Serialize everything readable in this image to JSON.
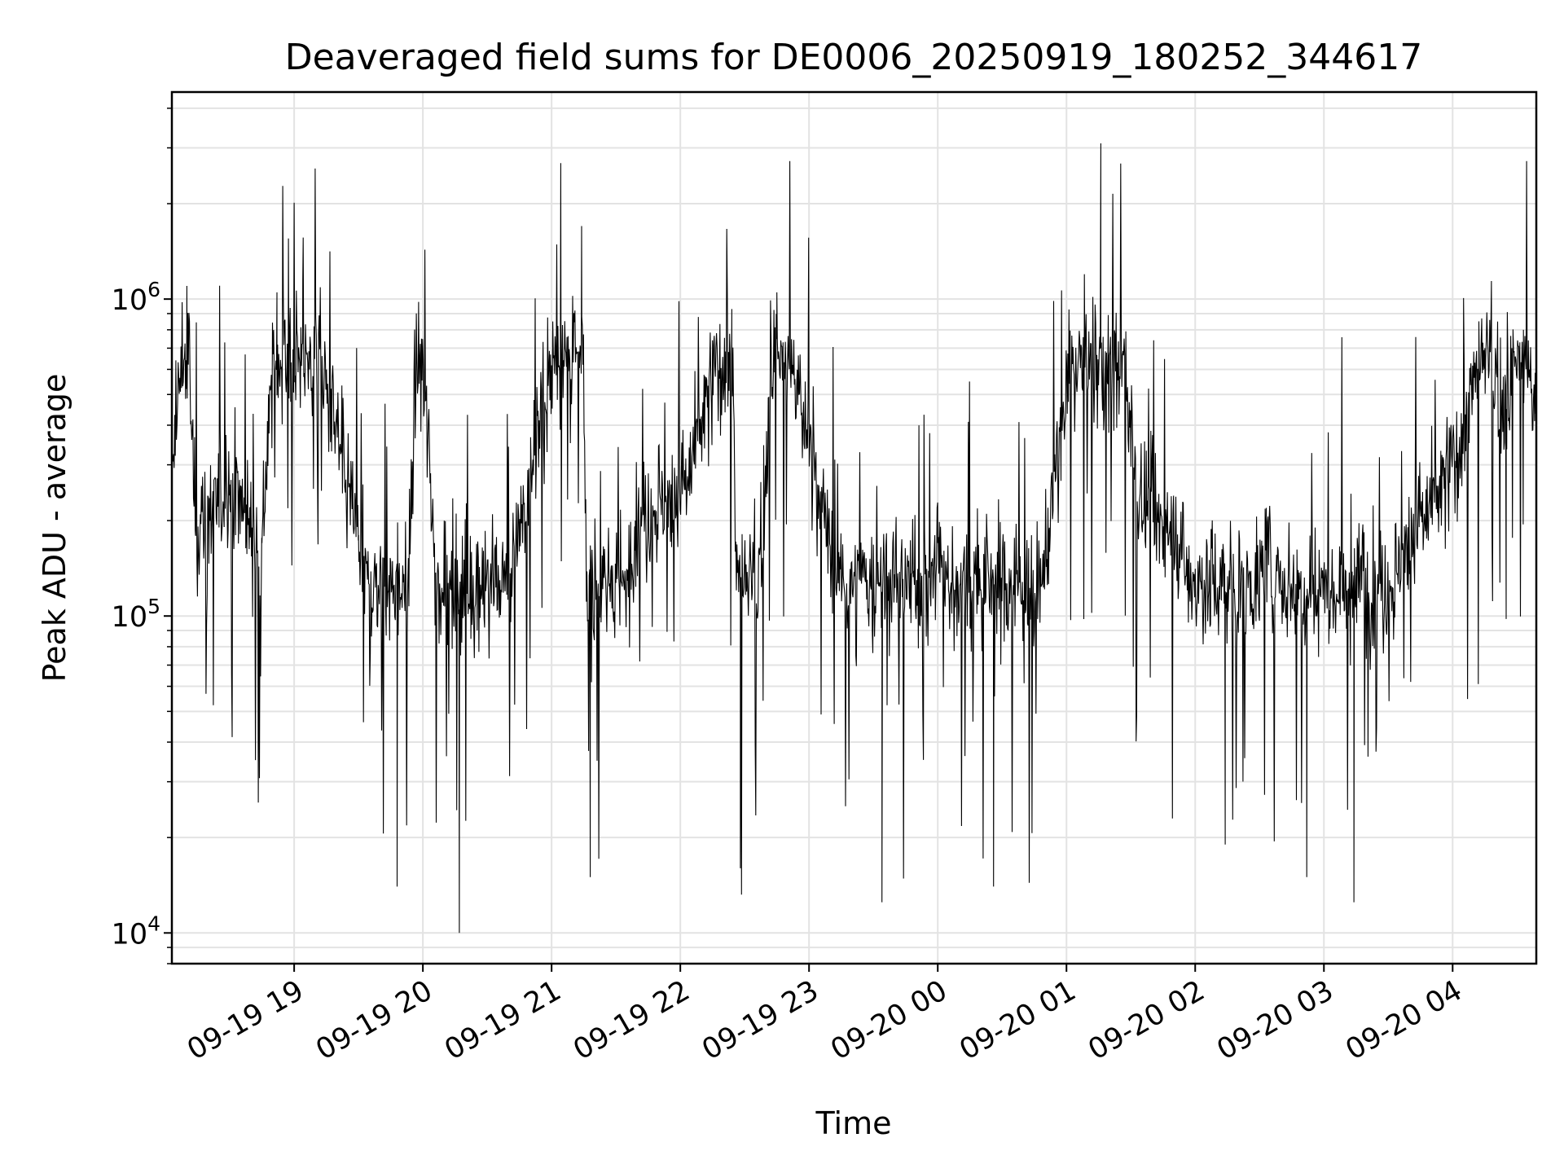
{
  "chart_data": {
    "type": "line",
    "title": "Deaveraged field sums for DE0006_20250919_180252_344617",
    "xlabel": "Time",
    "ylabel": "Peak ADU - average",
    "yscale": "log",
    "ylim": [
      8000,
      4500000
    ],
    "xlim": [
      "2025-09-19 18:03",
      "2025-09-20 04:39"
    ],
    "grid": true,
    "line_color": "#000000",
    "grid_color": "#e3e3e3",
    "x_ticks": [
      {
        "t": "2025-09-19 19:00",
        "label": "09-19 19"
      },
      {
        "t": "2025-09-19 20:00",
        "label": "09-19 20"
      },
      {
        "t": "2025-09-19 21:00",
        "label": "09-19 21"
      },
      {
        "t": "2025-09-19 22:00",
        "label": "09-19 22"
      },
      {
        "t": "2025-09-19 23:00",
        "label": "09-19 23"
      },
      {
        "t": "2025-09-20 00:00",
        "label": "09-20 00"
      },
      {
        "t": "2025-09-20 01:00",
        "label": "09-20 01"
      },
      {
        "t": "2025-09-20 02:00",
        "label": "09-20 02"
      },
      {
        "t": "2025-09-20 03:00",
        "label": "09-20 03"
      },
      {
        "t": "2025-09-20 04:00",
        "label": "09-20 04"
      }
    ],
    "y_ticks": [
      {
        "value": 10000,
        "base": "10",
        "exp": "4"
      },
      {
        "value": 100000,
        "base": "10",
        "exp": "5"
      },
      {
        "value": 1000000,
        "base": "10",
        "exp": "6"
      }
    ],
    "series": [
      {
        "x": [
          "2025-09-19 18:03",
          "2025-09-19 18:10",
          "2025-09-19 18:14",
          "2025-09-19 18:30",
          "2025-09-19 18:45",
          "2025-09-19 18:52",
          "2025-09-19 19:04",
          "2025-09-19 19:30",
          "2025-09-19 19:48",
          "2025-09-19 19:58",
          "2025-09-19 20:17",
          "2025-09-19 20:45",
          "2025-09-19 21:14",
          "2025-09-19 21:18",
          "2025-09-19 21:39",
          "2025-09-19 22:02",
          "2025-09-19 22:24",
          "2025-09-19 22:28",
          "2025-09-19 22:45",
          "2025-09-19 23:07",
          "2025-09-19 23:34",
          "2025-09-20 00:00",
          "2025-09-20 00:26",
          "2025-09-20 00:52",
          "2025-09-20 01:16",
          "2025-09-20 01:33",
          "2025-09-20 01:54",
          "2025-09-20 02:14",
          "2025-09-20 02:33",
          "2025-09-20 02:52",
          "2025-09-20 03:14",
          "2025-09-20 03:36",
          "2025-09-20 03:55",
          "2025-09-20 04:05",
          "2025-09-20 04:15",
          "2025-09-20 04:25",
          "2025-09-20 04:33",
          "2025-09-20 04:39"
        ],
        "y": [
          250000,
          1100000,
          180000,
          260000,
          170000,
          1050000,
          1150000,
          180000,
          14000,
          980000,
          10000,
          190000,
          1700000,
          15000,
          200000,
          250000,
          930000,
          16000,
          1050000,
          210000,
          12500,
          170000,
          14000,
          190000,
          3100000,
          230000,
          170000,
          19000,
          180000,
          15000,
          12500,
          160000,
          250000,
          380000,
          700000,
          450000,
          800000,
          420000
        ]
      }
    ]
  }
}
